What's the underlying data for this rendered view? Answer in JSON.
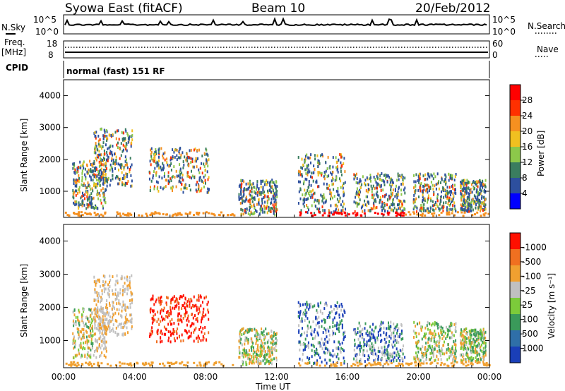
{
  "header": {
    "station": "Syowa East (fitACF)",
    "beam": "Beam 10",
    "date": "20/Feb/2012"
  },
  "panels": {
    "nsky_label": "N.Sky",
    "nsky_ticks": [
      "10^5",
      "10^0"
    ],
    "nsearch_label": "N.Search",
    "nsearch_ticks": [
      "10^5",
      "10^0"
    ],
    "freq_label": "Freq.",
    "freq_unit": "[MHz]",
    "freq_ticks": [
      "18",
      "8"
    ],
    "nave_label": "Nave",
    "nave_ticks": [
      "60",
      "0"
    ],
    "cpid_label": "CPID",
    "cpid_value": "normal (fast) 151 RF"
  },
  "chart_data": [
    {
      "type": "heatmap",
      "name": "power",
      "ylabel": "Slant Range [km]",
      "y_ticks": [
        1000,
        2000,
        3000,
        4000
      ],
      "ylim": [
        180,
        4500
      ],
      "colorbar_label": "Power [dB]",
      "colorbar_ticks": [
        "4",
        "8",
        "12",
        "16",
        "20",
        "24",
        "28"
      ],
      "colors": [
        "#0000ff",
        "#2d4f9e",
        "#3a7d5f",
        "#8cc84a",
        "#f0c020",
        "#f59020",
        "#ff3000",
        "#ff0000"
      ],
      "x_tick_labels": [
        "00:00",
        "04:00",
        "08:00",
        "12:00",
        "16:00",
        "20:00",
        "00:00"
      ]
    },
    {
      "type": "heatmap",
      "name": "velocity",
      "xlabel": "Time UT",
      "ylabel": "Slant Range [km]",
      "y_ticks": [
        1000,
        2000,
        3000,
        4000
      ],
      "ylim": [
        180,
        4500
      ],
      "colorbar_label": "Velocity [m s⁻¹]",
      "colorbar_ticks": [
        "1000",
        "500",
        "100",
        "25",
        "-25",
        "-100",
        "-500",
        "-1000"
      ],
      "colors": [
        "#1a3fb8",
        "#2f6fa8",
        "#3a9a5a",
        "#7ccb3a",
        "#c0c0c0",
        "#f0a030",
        "#f07020",
        "#ff1000"
      ],
      "x_tick_labels": [
        "00:00",
        "04:00",
        "08:00",
        "12:00",
        "16:00",
        "20:00",
        "00:00"
      ]
    }
  ]
}
